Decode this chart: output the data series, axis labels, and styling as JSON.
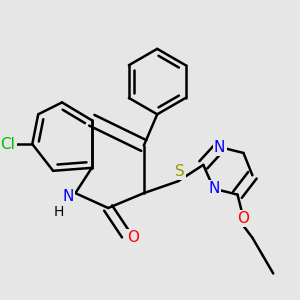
{
  "bg_color": "#e6e6e6",
  "bond_color": "#000000",
  "bond_width": 1.8,
  "figsize": [
    3.0,
    3.0
  ],
  "dpi": 100,
  "atom_colors": {
    "Cl": "#00bb00",
    "N": "#0000ff",
    "O": "#ff0000",
    "S": "#999900"
  }
}
